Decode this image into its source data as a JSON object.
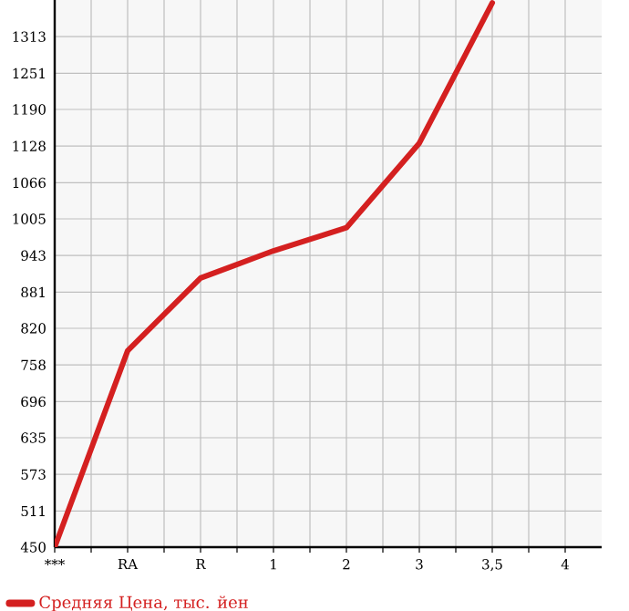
{
  "chart_data": {
    "type": "line",
    "categories": [
      "***",
      "RA",
      "R",
      "1",
      "2",
      "3",
      "3,5",
      "4"
    ],
    "series": [
      {
        "name": "Средняя Цена, тыс. йен",
        "color": "#d42020",
        "values": [
          450,
          782,
          905,
          951,
          990,
          1133,
          1370,
          null
        ]
      }
    ],
    "ylim": [
      450,
      1375
    ],
    "yticks": [
      450,
      511,
      573,
      635,
      696,
      758,
      820,
      881,
      943,
      1005,
      1066,
      1128,
      1190,
      1251,
      1313
    ],
    "grid": true,
    "legend": "bottom",
    "marker": "none",
    "line_style": "solid"
  }
}
